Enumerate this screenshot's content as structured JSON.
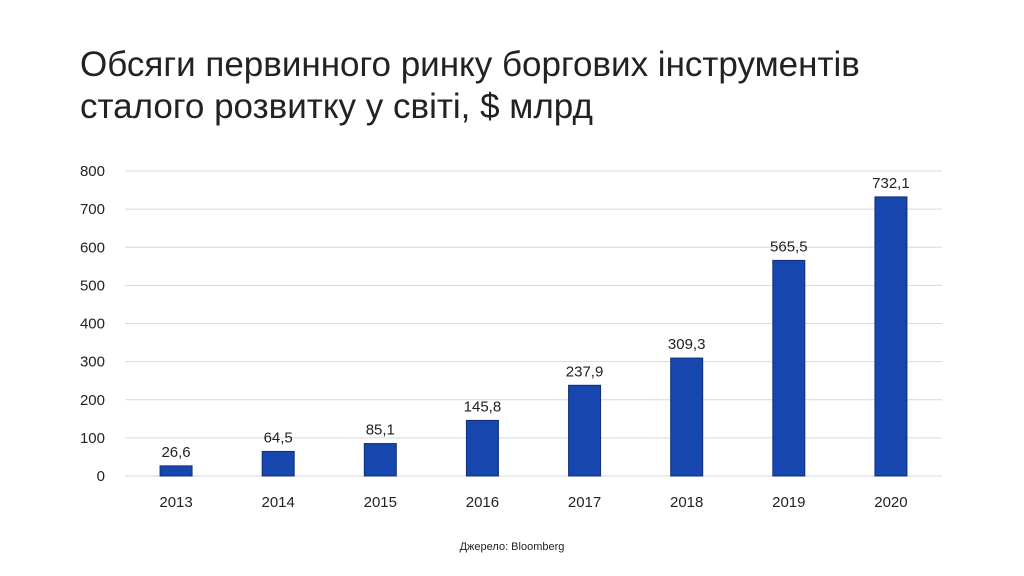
{
  "title": {
    "line1": "Обсяги первинного ринку боргових інструментів",
    "line2": "сталого розвитку у світі, $ млрд"
  },
  "source": "Джерело: Bloomberg",
  "chart_data": {
    "type": "bar",
    "title": "Обсяги первинного ринку боргових інструментів сталого розвитку у світі, $ млрд",
    "categories": [
      "2013",
      "2014",
      "2015",
      "2016",
      "2017",
      "2018",
      "2019",
      "2020"
    ],
    "values": [
      26.6,
      64.5,
      85.1,
      145.8,
      237.9,
      309.3,
      565.5,
      732.1
    ],
    "data_labels": [
      "26,6",
      "64,5",
      "85,1",
      "145,8",
      "237,9",
      "309,3",
      "565,5",
      "732,1"
    ],
    "y_ticks": [
      0,
      100,
      200,
      300,
      400,
      500,
      600,
      700,
      800
    ],
    "ylim": [
      0,
      800
    ],
    "xlabel": "",
    "ylabel": "",
    "grid": true,
    "legend": "none",
    "colors": {
      "bar": "#1747AE",
      "bar_edge": "#0F2F7A",
      "grid": "#D9D9D9",
      "text": "#222222"
    }
  }
}
